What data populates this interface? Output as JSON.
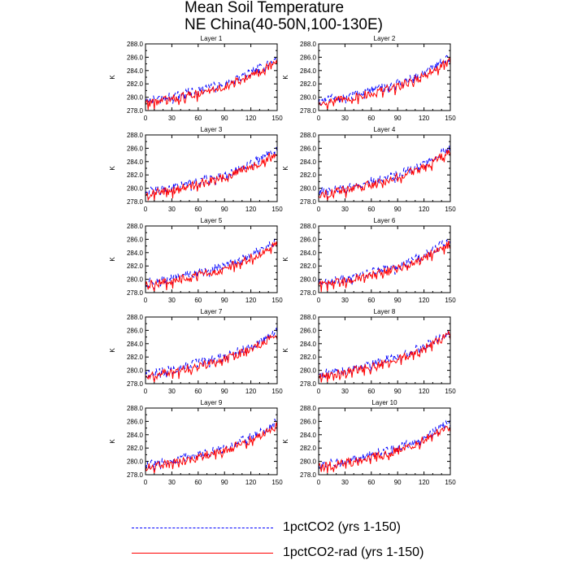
{
  "title": [
    "Mean Soil Temperature",
    "NE China(40-50N,100-130E)"
  ],
  "colors": {
    "series1": "#0000ff",
    "series2": "#ff0000"
  },
  "legend": [
    {
      "label": "1pctCO2 (yrs 1-150)",
      "color": "#0000ff",
      "dash": "dashed"
    },
    {
      "label": "1pctCO2-rad (yrs 1-150)",
      "color": "#ff0000",
      "dash": "solid"
    }
  ],
  "chart_data": [
    {
      "type": "line",
      "title": "Layer 1",
      "ylabel": "K",
      "xlim": [
        0,
        150
      ],
      "ylim": [
        278,
        288
      ],
      "xticks": [
        "0",
        "30",
        "60",
        "90",
        "120",
        "150"
      ],
      "yticks": [
        "278.0",
        "280.0",
        "282.0",
        "284.0",
        "286.0",
        "288.0"
      ],
      "series": [
        {
          "name": "1pctCO2 (yrs 1-150)",
          "trend": [
            [
              0,
              279.4
            ],
            [
              30,
              280.1
            ],
            [
              60,
              281.1
            ],
            [
              90,
              282.0
            ],
            [
              120,
              283.6
            ],
            [
              150,
              286.0
            ]
          ]
        },
        {
          "name": "1pctCO2-rad (yrs 1-150)",
          "trend": [
            [
              0,
              279.1
            ],
            [
              30,
              279.7
            ],
            [
              60,
              280.6
            ],
            [
              90,
              281.6
            ],
            [
              120,
              283.2
            ],
            [
              150,
              285.4
            ]
          ]
        }
      ]
    },
    {
      "type": "line",
      "title": "Layer 2",
      "ylabel": "K",
      "xlim": [
        0,
        150
      ],
      "ylim": [
        278,
        288
      ],
      "xticks": [
        "0",
        "30",
        "60",
        "90",
        "120",
        "150"
      ],
      "yticks": [
        "278.0",
        "280.0",
        "282.0",
        "284.0",
        "286.0",
        "288.0"
      ],
      "series": [
        {
          "name": "1pctCO2 (yrs 1-150)",
          "trend": [
            [
              0,
              279.4
            ],
            [
              30,
              280.1
            ],
            [
              60,
              281.1
            ],
            [
              90,
              282.0
            ],
            [
              120,
              283.6
            ],
            [
              150,
              286.0
            ]
          ]
        },
        {
          "name": "1pctCO2-rad (yrs 1-150)",
          "trend": [
            [
              0,
              279.1
            ],
            [
              30,
              279.7
            ],
            [
              60,
              280.6
            ],
            [
              90,
              281.6
            ],
            [
              120,
              283.2
            ],
            [
              150,
              285.4
            ]
          ]
        }
      ]
    },
    {
      "type": "line",
      "title": "Layer 3",
      "ylabel": "K",
      "xlim": [
        0,
        150
      ],
      "ylim": [
        278,
        288
      ],
      "xticks": [
        "0",
        "30",
        "60",
        "90",
        "120",
        "150"
      ],
      "yticks": [
        "278.0",
        "280.0",
        "282.0",
        "284.0",
        "286.0",
        "288.0"
      ],
      "series": [
        {
          "name": "1pctCO2 (yrs 1-150)",
          "trend": [
            [
              0,
              279.4
            ],
            [
              30,
              280.1
            ],
            [
              60,
              281.1
            ],
            [
              90,
              282.0
            ],
            [
              120,
              283.6
            ],
            [
              150,
              286.0
            ]
          ]
        },
        {
          "name": "1pctCO2-rad (yrs 1-150)",
          "trend": [
            [
              0,
              279.1
            ],
            [
              30,
              279.7
            ],
            [
              60,
              280.6
            ],
            [
              90,
              281.6
            ],
            [
              120,
              283.2
            ],
            [
              150,
              285.4
            ]
          ]
        }
      ]
    },
    {
      "type": "line",
      "title": "Layer 4",
      "ylabel": "K",
      "xlim": [
        0,
        150
      ],
      "ylim": [
        278,
        288
      ],
      "xticks": [
        "0",
        "30",
        "60",
        "90",
        "120",
        "150"
      ],
      "yticks": [
        "278.0",
        "280.0",
        "282.0",
        "284.0",
        "286.0",
        "288.0"
      ],
      "series": [
        {
          "name": "1pctCO2 (yrs 1-150)",
          "trend": [
            [
              0,
              279.4
            ],
            [
              30,
              280.1
            ],
            [
              60,
              281.1
            ],
            [
              90,
              282.0
            ],
            [
              120,
              283.6
            ],
            [
              150,
              286.0
            ]
          ]
        },
        {
          "name": "1pctCO2-rad (yrs 1-150)",
          "trend": [
            [
              0,
              279.1
            ],
            [
              30,
              279.7
            ],
            [
              60,
              280.6
            ],
            [
              90,
              281.6
            ],
            [
              120,
              283.2
            ],
            [
              150,
              285.4
            ]
          ]
        }
      ]
    },
    {
      "type": "line",
      "title": "Layer 5",
      "ylabel": "K",
      "xlim": [
        0,
        150
      ],
      "ylim": [
        278,
        288
      ],
      "xticks": [
        "0",
        "30",
        "60",
        "90",
        "120",
        "150"
      ],
      "yticks": [
        "278.0",
        "280.0",
        "282.0",
        "284.0",
        "286.0",
        "288.0"
      ],
      "series": [
        {
          "name": "1pctCO2 (yrs 1-150)",
          "trend": [
            [
              0,
              279.4
            ],
            [
              30,
              280.1
            ],
            [
              60,
              281.1
            ],
            [
              90,
              282.0
            ],
            [
              120,
              283.6
            ],
            [
              150,
              286.0
            ]
          ]
        },
        {
          "name": "1pctCO2-rad (yrs 1-150)",
          "trend": [
            [
              0,
              279.1
            ],
            [
              30,
              279.7
            ],
            [
              60,
              280.6
            ],
            [
              90,
              281.6
            ],
            [
              120,
              283.2
            ],
            [
              150,
              285.4
            ]
          ]
        }
      ]
    },
    {
      "type": "line",
      "title": "Layer 6",
      "ylabel": "K",
      "xlim": [
        0,
        150
      ],
      "ylim": [
        278,
        288
      ],
      "xticks": [
        "0",
        "30",
        "60",
        "90",
        "120",
        "150"
      ],
      "yticks": [
        "278.0",
        "280.0",
        "282.0",
        "284.0",
        "286.0",
        "288.0"
      ],
      "series": [
        {
          "name": "1pctCO2 (yrs 1-150)",
          "trend": [
            [
              0,
              279.4
            ],
            [
              30,
              280.1
            ],
            [
              60,
              281.1
            ],
            [
              90,
              282.0
            ],
            [
              120,
              283.6
            ],
            [
              150,
              286.0
            ]
          ]
        },
        {
          "name": "1pctCO2-rad (yrs 1-150)",
          "trend": [
            [
              0,
              279.1
            ],
            [
              30,
              279.7
            ],
            [
              60,
              280.6
            ],
            [
              90,
              281.6
            ],
            [
              120,
              283.2
            ],
            [
              150,
              285.4
            ]
          ]
        }
      ]
    },
    {
      "type": "line",
      "title": "Layer 7",
      "ylabel": "K",
      "xlim": [
        0,
        150
      ],
      "ylim": [
        278,
        288
      ],
      "xticks": [
        "0",
        "30",
        "60",
        "90",
        "120",
        "150"
      ],
      "yticks": [
        "278.0",
        "280.0",
        "282.0",
        "284.0",
        "286.0",
        "288.0"
      ],
      "series": [
        {
          "name": "1pctCO2 (yrs 1-150)",
          "trend": [
            [
              0,
              279.4
            ],
            [
              30,
              280.1
            ],
            [
              60,
              281.1
            ],
            [
              90,
              282.0
            ],
            [
              120,
              283.6
            ],
            [
              150,
              286.0
            ]
          ]
        },
        {
          "name": "1pctCO2-rad (yrs 1-150)",
          "trend": [
            [
              0,
              279.1
            ],
            [
              30,
              279.7
            ],
            [
              60,
              280.6
            ],
            [
              90,
              281.6
            ],
            [
              120,
              283.2
            ],
            [
              150,
              285.4
            ]
          ]
        }
      ]
    },
    {
      "type": "line",
      "title": "Layer 8",
      "ylabel": "K",
      "xlim": [
        0,
        150
      ],
      "ylim": [
        278,
        288
      ],
      "xticks": [
        "0",
        "30",
        "60",
        "90",
        "120",
        "150"
      ],
      "yticks": [
        "278.0",
        "280.0",
        "282.0",
        "284.0",
        "286.0",
        "288.0"
      ],
      "series": [
        {
          "name": "1pctCO2 (yrs 1-150)",
          "trend": [
            [
              0,
              279.4
            ],
            [
              30,
              280.1
            ],
            [
              60,
              281.1
            ],
            [
              90,
              282.0
            ],
            [
              120,
              283.6
            ],
            [
              150,
              286.0
            ]
          ]
        },
        {
          "name": "1pctCO2-rad (yrs 1-150)",
          "trend": [
            [
              0,
              279.1
            ],
            [
              30,
              279.7
            ],
            [
              60,
              280.6
            ],
            [
              90,
              281.6
            ],
            [
              120,
              283.2
            ],
            [
              150,
              285.4
            ]
          ]
        }
      ]
    },
    {
      "type": "line",
      "title": "Layer 9",
      "ylabel": "K",
      "xlim": [
        0,
        150
      ],
      "ylim": [
        278,
        288
      ],
      "xticks": [
        "0",
        "30",
        "60",
        "90",
        "120",
        "150"
      ],
      "yticks": [
        "278.0",
        "280.0",
        "282.0",
        "284.0",
        "286.0",
        "288.0"
      ],
      "series": [
        {
          "name": "1pctCO2 (yrs 1-150)",
          "trend": [
            [
              0,
              279.4
            ],
            [
              30,
              280.1
            ],
            [
              60,
              281.1
            ],
            [
              90,
              282.0
            ],
            [
              120,
              283.6
            ],
            [
              150,
              286.0
            ]
          ]
        },
        {
          "name": "1pctCO2-rad (yrs 1-150)",
          "trend": [
            [
              0,
              279.1
            ],
            [
              30,
              279.7
            ],
            [
              60,
              280.6
            ],
            [
              90,
              281.6
            ],
            [
              120,
              283.2
            ],
            [
              150,
              285.4
            ]
          ]
        }
      ]
    },
    {
      "type": "line",
      "title": "Layer 10",
      "ylabel": "K",
      "xlim": [
        0,
        150
      ],
      "ylim": [
        278,
        288
      ],
      "xticks": [
        "0",
        "30",
        "60",
        "90",
        "120",
        "150"
      ],
      "yticks": [
        "278.0",
        "280.0",
        "282.0",
        "284.0",
        "286.0",
        "288.0"
      ],
      "series": [
        {
          "name": "1pctCO2 (yrs 1-150)",
          "trend": [
            [
              0,
              279.4
            ],
            [
              30,
              280.1
            ],
            [
              60,
              281.1
            ],
            [
              90,
              282.0
            ],
            [
              120,
              283.6
            ],
            [
              150,
              286.0
            ]
          ]
        },
        {
          "name": "1pctCO2-rad (yrs 1-150)",
          "trend": [
            [
              0,
              279.1
            ],
            [
              30,
              279.7
            ],
            [
              60,
              280.6
            ],
            [
              90,
              281.6
            ],
            [
              120,
              283.2
            ],
            [
              150,
              285.4
            ]
          ]
        }
      ]
    }
  ]
}
